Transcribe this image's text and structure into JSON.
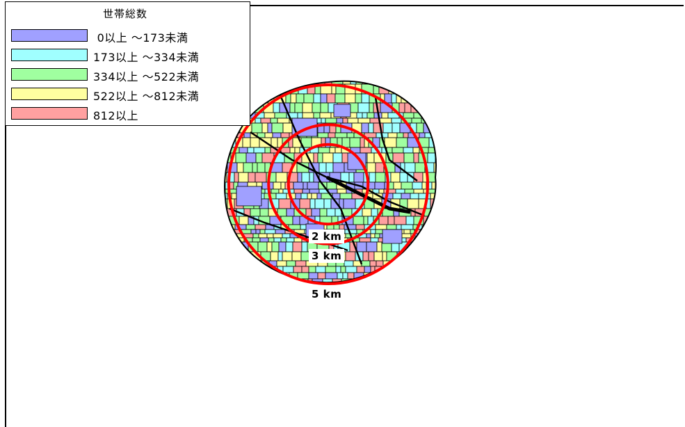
{
  "legend": {
    "title": "世帯総数",
    "items": [
      {
        "label": " 0以上 ～173未満",
        "color": "#a0a0ff"
      },
      {
        "label": "173以上 ～334未満",
        "color": "#a0ffff"
      },
      {
        "label": "334以上 ～522未満",
        "color": "#a0ffa0"
      },
      {
        "label": "522以上 ～812未満",
        "color": "#ffffa0"
      },
      {
        "label": "812以上",
        "color": "#ffa0a0"
      }
    ]
  },
  "map": {
    "ring_color": "#ff0000",
    "rings": [
      {
        "label": "2 km",
        "radius_km": 2
      },
      {
        "label": "3 km",
        "radius_km": 3
      },
      {
        "label": "5 km",
        "radius_km": 5
      }
    ]
  }
}
